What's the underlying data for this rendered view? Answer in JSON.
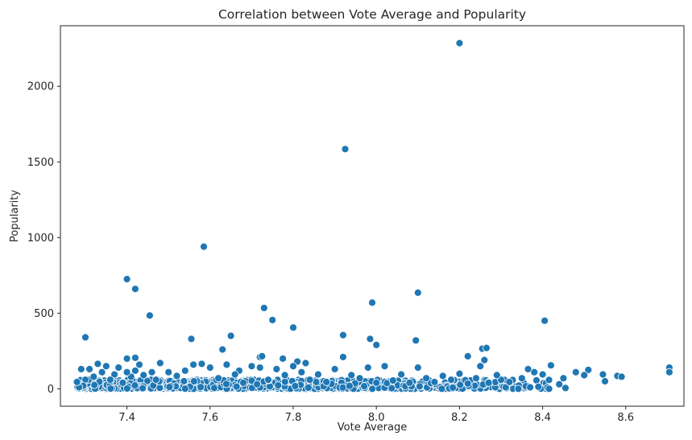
{
  "chart_data": {
    "type": "scatter",
    "title": "Correlation between Vote Average and Popularity",
    "xlabel": "Vote Average",
    "ylabel": "Popularity",
    "xlim": [
      7.24,
      8.74
    ],
    "ylim": [
      -115,
      2400
    ],
    "xticks": [
      "7.4",
      "7.6",
      "7.8",
      "8.0",
      "8.2",
      "8.4",
      "8.6"
    ],
    "yticks": [
      "0",
      "500",
      "1000",
      "1500",
      "2000"
    ],
    "marker_color": "#1f77b4",
    "marker_edge": "#ffffff",
    "grid": false,
    "series": [
      {
        "points": [
          [
            8.2,
            2285
          ],
          [
            7.925,
            1585
          ],
          [
            7.585,
            940
          ],
          [
            7.4,
            725
          ],
          [
            7.42,
            660
          ],
          [
            7.455,
            485
          ],
          [
            7.73,
            535
          ],
          [
            7.75,
            455
          ],
          [
            7.8,
            405
          ],
          [
            7.99,
            570
          ],
          [
            8.1,
            635
          ],
          [
            8.405,
            450
          ],
          [
            7.3,
            340
          ],
          [
            7.555,
            330
          ],
          [
            7.65,
            350
          ],
          [
            7.92,
            355
          ],
          [
            7.985,
            330
          ],
          [
            8.0,
            290
          ],
          [
            8.095,
            320
          ],
          [
            7.4,
            200
          ],
          [
            7.42,
            205
          ],
          [
            7.63,
            260
          ],
          [
            7.72,
            210
          ],
          [
            7.725,
            215
          ],
          [
            7.775,
            200
          ],
          [
            7.92,
            210
          ],
          [
            8.255,
            265
          ],
          [
            8.265,
            270
          ],
          [
            8.22,
            215
          ],
          [
            8.26,
            190
          ],
          [
            8.705,
            140
          ],
          [
            8.705,
            110
          ],
          [
            8.58,
            85
          ],
          [
            8.59,
            80
          ],
          [
            8.55,
            50
          ],
          [
            8.545,
            95
          ],
          [
            8.51,
            125
          ],
          [
            8.5,
            90
          ],
          [
            8.48,
            110
          ],
          [
            8.45,
            70
          ],
          [
            8.44,
            30
          ],
          [
            8.455,
            5
          ],
          [
            8.42,
            155
          ],
          [
            8.4,
            95
          ],
          [
            8.38,
            110
          ],
          [
            8.37,
            10
          ],
          [
            8.365,
            130
          ],
          [
            8.35,
            70
          ],
          [
            8.32,
            45
          ],
          [
            8.3,
            60
          ],
          [
            8.29,
            90
          ],
          [
            8.27,
            40
          ],
          [
            8.25,
            150
          ],
          [
            8.24,
            70
          ],
          [
            8.22,
            35
          ],
          [
            8.2,
            100
          ],
          [
            8.18,
            60
          ],
          [
            8.16,
            85
          ],
          [
            8.14,
            45
          ],
          [
            8.12,
            70
          ],
          [
            8.1,
            140
          ],
          [
            8.08,
            40
          ],
          [
            8.06,
            95
          ],
          [
            8.04,
            55
          ],
          [
            8.02,
            150
          ],
          [
            8.0,
            40
          ],
          [
            7.98,
            140
          ],
          [
            7.96,
            70
          ],
          [
            7.94,
            90
          ],
          [
            7.9,
            130
          ],
          [
            7.88,
            45
          ],
          [
            7.86,
            95
          ],
          [
            7.84,
            60
          ],
          [
            7.83,
            170
          ],
          [
            7.82,
            110
          ],
          [
            7.81,
            180
          ],
          [
            7.8,
            150
          ],
          [
            7.78,
            90
          ],
          [
            7.76,
            130
          ],
          [
            7.74,
            60
          ],
          [
            7.72,
            140
          ],
          [
            7.7,
            150
          ],
          [
            7.68,
            40
          ],
          [
            7.67,
            120
          ],
          [
            7.66,
            95
          ],
          [
            7.64,
            160
          ],
          [
            7.62,
            70
          ],
          [
            7.6,
            140
          ],
          [
            7.58,
            165
          ],
          [
            7.56,
            160
          ],
          [
            7.54,
            120
          ],
          [
            7.52,
            85
          ],
          [
            7.5,
            110
          ],
          [
            7.48,
            170
          ],
          [
            7.47,
            60
          ],
          [
            7.46,
            110
          ],
          [
            7.44,
            90
          ],
          [
            7.43,
            160
          ],
          [
            7.42,
            120
          ],
          [
            7.41,
            80
          ],
          [
            7.4,
            110
          ],
          [
            7.39,
            40
          ],
          [
            7.38,
            140
          ],
          [
            7.37,
            95
          ],
          [
            7.36,
            60
          ],
          [
            7.35,
            150
          ],
          [
            7.34,
            110
          ],
          [
            7.33,
            165
          ],
          [
            7.32,
            80
          ],
          [
            7.31,
            130
          ],
          [
            7.3,
            60
          ],
          [
            7.295,
            20
          ],
          [
            7.29,
            130
          ],
          [
            7.285,
            10
          ],
          [
            7.28,
            45
          ]
        ]
      }
    ],
    "dense_band": {
      "x_range": [
        7.28,
        8.42
      ],
      "y_range": [
        0,
        60
      ]
    }
  }
}
